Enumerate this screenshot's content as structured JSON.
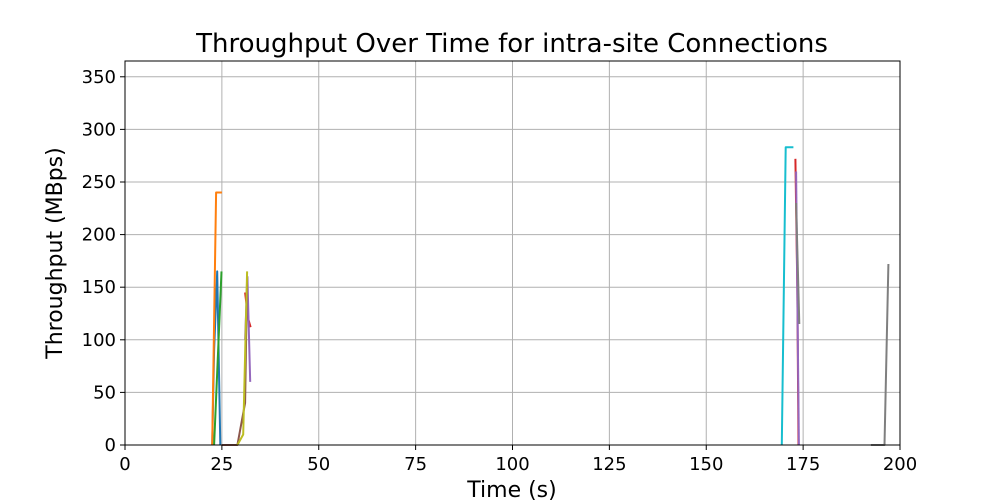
{
  "chart_data": {
    "type": "line",
    "title": "Throughput Over Time for intra-site Connections",
    "xlabel": "Time (s)",
    "ylabel": "Throughput (MBps)",
    "xlim": [
      0,
      200
    ],
    "ylim": [
      0,
      365
    ],
    "x_ticks": [
      0,
      25,
      50,
      75,
      100,
      125,
      150,
      175,
      200
    ],
    "y_ticks": [
      0,
      50,
      100,
      150,
      200,
      250,
      300,
      350
    ],
    "grid": true,
    "legend": "none",
    "series": [
      {
        "color": "#1f77b4",
        "points": [
          [
            22.5,
            0
          ],
          [
            23.0,
            90
          ],
          [
            23.8,
            165
          ],
          [
            24.6,
            0
          ]
        ]
      },
      {
        "color": "#ff7f0e",
        "points": [
          [
            22.5,
            0
          ],
          [
            23.5,
            240
          ],
          [
            25.0,
            240
          ]
        ]
      },
      {
        "color": "#2ca02c",
        "points": [
          [
            23.0,
            0
          ],
          [
            24.9,
            165
          ]
        ]
      },
      {
        "color": "#d62728",
        "points": [
          [
            31.0,
            145
          ],
          [
            31.8,
            120
          ],
          [
            32.4,
            112
          ]
        ]
      },
      {
        "color": "#9467bd",
        "points": [
          [
            31.0,
            100
          ],
          [
            31.6,
            160
          ],
          [
            32.3,
            60
          ]
        ]
      },
      {
        "color": "#8c564b",
        "points": [
          [
            25.0,
            0
          ],
          [
            29.0,
            0
          ],
          [
            31.0,
            40
          ],
          [
            31.5,
            160
          ]
        ]
      },
      {
        "color": "#bcbd22",
        "points": [
          [
            29.0,
            0
          ],
          [
            30.5,
            10
          ],
          [
            31.5,
            165
          ]
        ]
      },
      {
        "color": "#17becf",
        "points": [
          [
            169.5,
            0
          ],
          [
            170.5,
            283
          ],
          [
            172.5,
            283
          ]
        ]
      },
      {
        "color": "#d62728",
        "points": [
          [
            173.0,
            272
          ],
          [
            173.5,
            150
          ],
          [
            173.8,
            0
          ]
        ]
      },
      {
        "color": "#9467bd",
        "points": [
          [
            173.2,
            260
          ],
          [
            173.9,
            0
          ]
        ]
      },
      {
        "color": "#7f7f7f",
        "points": [
          [
            173.2,
            230
          ],
          [
            174.0,
            115
          ]
        ]
      },
      {
        "color": "#7f7f7f",
        "points": [
          [
            192.5,
            0
          ],
          [
            196.0,
            0
          ],
          [
            197.0,
            172
          ]
        ]
      }
    ]
  }
}
